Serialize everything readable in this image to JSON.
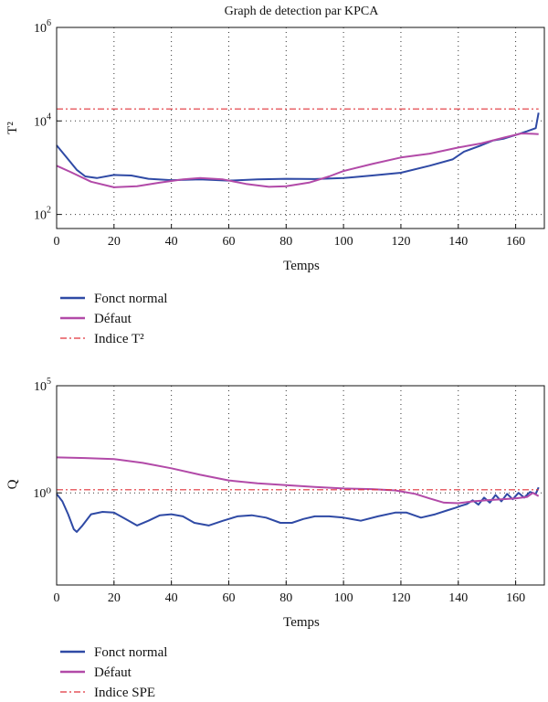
{
  "colors": {
    "normal": "#2f4aa5",
    "defaut": "#b24aa8",
    "threshold": "#e0333a",
    "grid": "#333333",
    "axis": "#111111"
  },
  "chart_data": [
    {
      "type": "line",
      "title": "Graph de detection par KPCA",
      "xlabel": "Temps",
      "ylabel": "T²",
      "yscale": "log",
      "xlim": [
        0,
        170
      ],
      "ylim": [
        50,
        1000000
      ],
      "xticks": [
        0,
        20,
        40,
        60,
        80,
        100,
        120,
        140,
        160
      ],
      "yticks": [
        {
          "value": 100,
          "base": "10",
          "exp": "2"
        },
        {
          "value": 10000,
          "base": "10",
          "exp": "4"
        },
        {
          "value": 1000000,
          "base": "10",
          "exp": "6"
        }
      ],
      "grid": "dotted",
      "legend_position": "below",
      "series": [
        {
          "name": "Fonct normal",
          "color_key": "normal",
          "points": [
            [
              0,
              3000
            ],
            [
              3,
              1800
            ],
            [
              7,
              900
            ],
            [
              10,
              650
            ],
            [
              14,
              600
            ],
            [
              20,
              700
            ],
            [
              26,
              680
            ],
            [
              32,
              580
            ],
            [
              40,
              540
            ],
            [
              50,
              560
            ],
            [
              60,
              530
            ],
            [
              70,
              560
            ],
            [
              80,
              580
            ],
            [
              90,
              570
            ],
            [
              100,
              600
            ],
            [
              110,
              680
            ],
            [
              120,
              780
            ],
            [
              130,
              1100
            ],
            [
              138,
              1500
            ],
            [
              142,
              2200
            ],
            [
              148,
              3000
            ],
            [
              152,
              3800
            ],
            [
              156,
              4200
            ],
            [
              160,
              5000
            ],
            [
              164,
              6000
            ],
            [
              167,
              7000
            ],
            [
              168,
              15000
            ]
          ]
        },
        {
          "name": "Défaut",
          "color_key": "defaut",
          "points": [
            [
              0,
              1100
            ],
            [
              5,
              800
            ],
            [
              12,
              500
            ],
            [
              20,
              380
            ],
            [
              28,
              400
            ],
            [
              36,
              480
            ],
            [
              44,
              560
            ],
            [
              50,
              600
            ],
            [
              58,
              560
            ],
            [
              66,
              450
            ],
            [
              74,
              390
            ],
            [
              80,
              400
            ],
            [
              88,
              480
            ],
            [
              95,
              650
            ],
            [
              100,
              850
            ],
            [
              110,
              1200
            ],
            [
              120,
              1650
            ],
            [
              130,
              2000
            ],
            [
              140,
              2700
            ],
            [
              148,
              3300
            ],
            [
              156,
              4400
            ],
            [
              162,
              5400
            ],
            [
              166,
              5300
            ],
            [
              168,
              5200
            ]
          ]
        },
        {
          "name": "Indice T²",
          "color_key": "threshold",
          "dash": "dashdot",
          "points": [
            [
              0,
              18000
            ],
            [
              168,
              18000
            ]
          ]
        }
      ]
    },
    {
      "type": "line",
      "title": "",
      "xlabel": "Temps",
      "ylabel": "Q",
      "yscale": "log",
      "xlim": [
        0,
        170
      ],
      "ylim": [
        5e-05,
        100000
      ],
      "xticks": [
        0,
        20,
        40,
        60,
        80,
        100,
        120,
        140,
        160
      ],
      "yticks": [
        {
          "value": 1,
          "text": "10⁰"
        },
        {
          "value": 100000,
          "base": "10",
          "exp": "5"
        }
      ],
      "grid": "dotted",
      "legend_position": "below",
      "series": [
        {
          "name": "Fonct normal",
          "color_key": "normal",
          "points": [
            [
              0,
              0.9
            ],
            [
              2,
              0.4
            ],
            [
              4,
              0.1
            ],
            [
              6,
              0.02
            ],
            [
              7,
              0.015
            ],
            [
              9,
              0.03
            ],
            [
              12,
              0.1
            ],
            [
              16,
              0.13
            ],
            [
              20,
              0.12
            ],
            [
              24,
              0.06
            ],
            [
              28,
              0.03
            ],
            [
              32,
              0.05
            ],
            [
              36,
              0.09
            ],
            [
              40,
              0.1
            ],
            [
              44,
              0.08
            ],
            [
              48,
              0.04
            ],
            [
              53,
              0.03
            ],
            [
              58,
              0.05
            ],
            [
              63,
              0.08
            ],
            [
              68,
              0.09
            ],
            [
              73,
              0.07
            ],
            [
              78,
              0.04
            ],
            [
              82,
              0.04
            ],
            [
              86,
              0.06
            ],
            [
              90,
              0.08
            ],
            [
              95,
              0.08
            ],
            [
              100,
              0.07
            ],
            [
              106,
              0.05
            ],
            [
              112,
              0.08
            ],
            [
              118,
              0.12
            ],
            [
              122,
              0.12
            ],
            [
              127,
              0.07
            ],
            [
              132,
              0.1
            ],
            [
              136,
              0.15
            ],
            [
              139,
              0.2
            ],
            [
              141,
              0.25
            ],
            [
              143,
              0.3
            ],
            [
              145,
              0.45
            ],
            [
              147,
              0.28
            ],
            [
              149,
              0.6
            ],
            [
              151,
              0.35
            ],
            [
              153,
              0.8
            ],
            [
              155,
              0.4
            ],
            [
              157,
              0.9
            ],
            [
              159,
              0.5
            ],
            [
              161,
              1.0
            ],
            [
              163,
              0.6
            ],
            [
              165,
              1.1
            ],
            [
              167,
              0.9
            ],
            [
              168,
              1.8
            ]
          ]
        },
        {
          "name": "Défaut",
          "color_key": "defaut",
          "points": [
            [
              0,
              45
            ],
            [
              10,
              42
            ],
            [
              20,
              38
            ],
            [
              30,
              25
            ],
            [
              40,
              14
            ],
            [
              50,
              7
            ],
            [
              60,
              3.8
            ],
            [
              70,
              2.8
            ],
            [
              80,
              2.3
            ],
            [
              90,
              1.9
            ],
            [
              100,
              1.6
            ],
            [
              110,
              1.5
            ],
            [
              118,
              1.3
            ],
            [
              125,
              0.9
            ],
            [
              130,
              0.55
            ],
            [
              135,
              0.35
            ],
            [
              140,
              0.33
            ],
            [
              145,
              0.4
            ],
            [
              150,
              0.45
            ],
            [
              155,
              0.5
            ],
            [
              160,
              0.55
            ],
            [
              164,
              0.65
            ],
            [
              166,
              1.0
            ],
            [
              168,
              0.7
            ]
          ]
        },
        {
          "name": "Indice SPE",
          "color_key": "threshold",
          "dash": "dashdot",
          "points": [
            [
              0,
              1.4
            ],
            [
              168,
              1.4
            ]
          ]
        }
      ]
    }
  ]
}
